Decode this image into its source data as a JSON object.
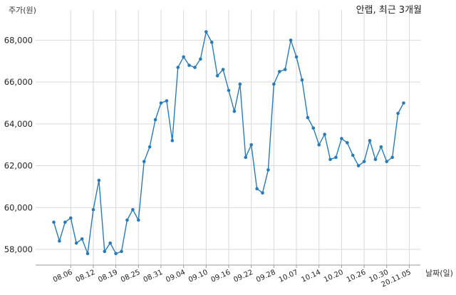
{
  "chart_data": {
    "type": "line",
    "title": "안랩, 최근 3개월",
    "ylabel": "주가(원)",
    "xlabel": "날짜(일)",
    "ylim": [
      57250,
      68900
    ],
    "y_ticks": [
      58000,
      60000,
      62000,
      64000,
      66000,
      68000
    ],
    "y_tick_labels": [
      "58,000",
      "60,000",
      "62,000",
      "64,000",
      "66,000",
      "68,000"
    ],
    "x_tick_labels": [
      "08.06",
      "08.12",
      "08.19",
      "08.25",
      "08.31",
      "09.04",
      "09.10",
      "09.16",
      "09.22",
      "09.28",
      "10.07",
      "10.14",
      "10.20",
      "10.26",
      "10.30",
      "20.11.05"
    ],
    "x_tick_index": [
      3,
      7,
      11,
      15,
      19,
      23,
      27,
      31,
      35,
      39,
      43,
      47,
      51,
      55,
      59,
      63
    ],
    "grid": true,
    "line_color": "#2a7ab8",
    "series": [
      {
        "values": [
          59300,
          58400,
          59300,
          59500,
          58300,
          58500,
          57800,
          59900,
          61300,
          57900,
          58300,
          57800,
          57900,
          59400,
          59900,
          59400,
          62200,
          62900,
          64200,
          65000,
          65100,
          63200,
          66700,
          67200,
          66800,
          66700,
          67100,
          68400,
          67900,
          66300,
          66600,
          65600,
          64600,
          65900,
          62400,
          63000,
          60900,
          60700,
          61800,
          65900,
          66500,
          66600,
          68000,
          67200,
          66100,
          64300,
          63800,
          63000,
          63500,
          62300,
          62400,
          63300,
          63100,
          62500,
          62000,
          62200,
          63200,
          62300,
          62900,
          62200,
          62400,
          64500,
          65000
        ]
      }
    ]
  }
}
